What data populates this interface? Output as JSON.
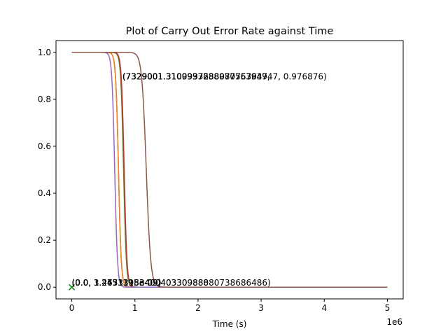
{
  "chart_data": {
    "type": "line",
    "title": "Plot of Carry Out Error Rate against Time",
    "xlabel": "Time (s)",
    "ylabel": "",
    "x_offset_label": "1e6",
    "xlim": [
      -0.25,
      5.25
    ],
    "ylim": [
      -0.05,
      1.05
    ],
    "x_ticks": [
      0,
      1,
      2,
      3,
      4,
      5
    ],
    "x_tick_labels": [
      "0",
      "1",
      "2",
      "3",
      "4",
      "5"
    ],
    "y_ticks": [
      0.0,
      0.2,
      0.4,
      0.6,
      0.8,
      1.0
    ],
    "y_tick_labels": [
      "0.0",
      "0.2",
      "0.4",
      "0.6",
      "0.8",
      "1.0"
    ],
    "grid": false,
    "legend": "none",
    "x_units_note": "x values in units of 1e6 seconds",
    "series": [
      {
        "color": "#1f77b4",
        "midpoint_x": 0.74,
        "steepness": 0.022,
        "x_start": 0,
        "x_end": 5
      },
      {
        "color": "#ff7f0e",
        "midpoint_x": 0.74,
        "steepness": 0.022,
        "x_start": 0,
        "x_end": 5
      },
      {
        "color": "#2ca02c",
        "midpoint_x": 0.82,
        "steepness": 0.022,
        "x_start": 0,
        "x_end": 5
      },
      {
        "color": "#d62728",
        "midpoint_x": 0.83,
        "steepness": 0.022,
        "x_start": 0,
        "x_end": 5
      },
      {
        "color": "#9467bd",
        "midpoint_x": 0.68,
        "steepness": 0.022,
        "x_start": 0,
        "x_end": 5
      },
      {
        "color": "#8c564b",
        "midpoint_x": 1.18,
        "steepness": 0.035,
        "x_start": 0,
        "x_end": 5
      }
    ],
    "marker": {
      "symbol": "x",
      "color": "#008000",
      "x": 0,
      "y": 0
    },
    "annotations_upper": [
      {
        "text": "(7329001.3109937288077763947, ",
        "x": 0.78,
        "y": 0.9
      },
      {
        "text": "(7329001.3109937288077763947, ",
        "x": 0.78,
        "y": 0.9
      },
      {
        "text": "(7329001.3109937288077763947, ",
        "x": 0.78,
        "y": 0.9
      },
      {
        "text": "(7329001.3109937288077763947, ",
        "x": 0.78,
        "y": 0.9
      },
      {
        "text": "(7329001.310099363898055763947, 0.976876)",
        "x": 0.78,
        "y": 0.9
      }
    ],
    "annotations_lower": [
      {
        "text": "(0.0, 1.2451315e-09)",
        "x": 0,
        "y": 0.0
      },
      {
        "text": "(0.0, 1.2451315e-09)",
        "x": 0,
        "y": 0.0
      },
      {
        "text": "(0.0, 3.4671315e-09)",
        "x": 0,
        "y": 0.0
      },
      {
        "text": "(0.0, 1.2451315e-09)",
        "x": 0,
        "y": 0.0
      },
      {
        "text": "(0.0, 1.27331983400403309888",
        "x": 0,
        "y": 0.0
      },
      {
        "text": "(0.0, 1.2733198340040330988080738686486)",
        "x": 0,
        "y": 0.0
      }
    ]
  }
}
